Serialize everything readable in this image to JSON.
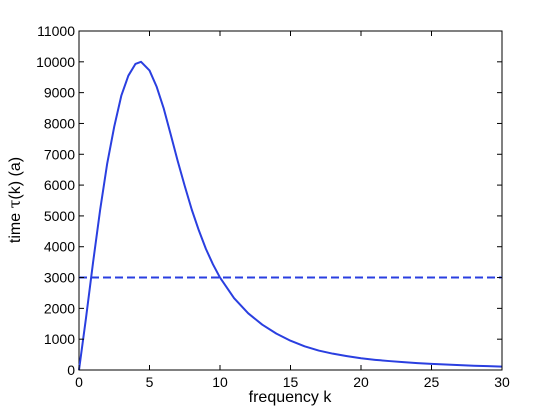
{
  "chart_data": {
    "type": "line",
    "title": "",
    "xlabel": "frequency k",
    "ylabel_parts": {
      "prefix": "time ",
      "symbol": "τ",
      "suffix": "(k)  (a)"
    },
    "xlim": [
      0,
      30
    ],
    "ylim": [
      0,
      11000
    ],
    "x_ticks": [
      0,
      5,
      10,
      15,
      20,
      25,
      30
    ],
    "y_ticks": [
      0,
      1000,
      2000,
      3000,
      4000,
      5000,
      6000,
      7000,
      8000,
      9000,
      10000,
      11000
    ],
    "grid": false,
    "legend": "none",
    "series": [
      {
        "style": "solid",
        "color": "#2a3fe0",
        "x": [
          0,
          0.5,
          1,
          1.5,
          2,
          2.5,
          3,
          3.5,
          4,
          4.4,
          5,
          5.5,
          6,
          6.5,
          7,
          7.5,
          8,
          8.5,
          9,
          9.5,
          10,
          11,
          12,
          13,
          14,
          15,
          16,
          17,
          18,
          19,
          20,
          21,
          22,
          23,
          24,
          25,
          26,
          27,
          28,
          29,
          30
        ],
        "y": [
          0,
          1700,
          3500,
          5200,
          6700,
          7900,
          8900,
          9550,
          9930,
          10000,
          9720,
          9200,
          8500,
          7650,
          6780,
          5970,
          5200,
          4530,
          3930,
          3430,
          3000,
          2330,
          1840,
          1470,
          1180,
          950,
          770,
          630,
          530,
          450,
          380,
          330,
          290,
          255,
          225,
          200,
          180,
          160,
          140,
          125,
          110
        ]
      },
      {
        "style": "dashed",
        "color": "#2a3fe0",
        "x": [
          0,
          30
        ],
        "y": [
          3000,
          3000
        ]
      }
    ]
  }
}
